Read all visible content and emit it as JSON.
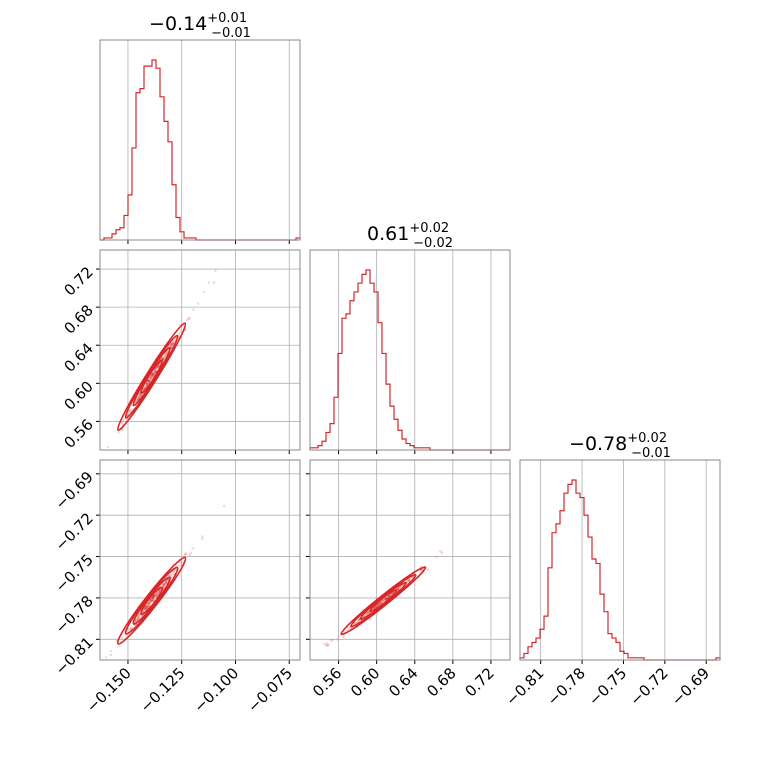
{
  "chart_data": {
    "type": "corner",
    "color": "#d62728",
    "parameters": [
      {
        "range": [
          -0.163,
          -0.07
        ],
        "ticks": [
          -0.15,
          -0.125,
          -0.1,
          -0.075
        ],
        "tick_labels": [
          "−0.150",
          "−0.125",
          "−0.100",
          "−0.075"
        ],
        "summary": {
          "median": "−0.14",
          "plus": "+0.01",
          "minus": "−0.01"
        },
        "hist": {
          "start": -0.163,
          "step": 0.00186,
          "counts": [
            0,
            1,
            1,
            3,
            5,
            6,
            12,
            22,
            45,
            72,
            74,
            85,
            85,
            88,
            84,
            70,
            58,
            48,
            27,
            11,
            4,
            1,
            1,
            1,
            0,
            0,
            0,
            0,
            0,
            0,
            0,
            0,
            0,
            0,
            0,
            0,
            0,
            0,
            0,
            0,
            0,
            0,
            0,
            0,
            0,
            0,
            0,
            0,
            0,
            1
          ]
        }
      },
      {
        "range": [
          0.53,
          0.74
        ],
        "ticks": [
          0.56,
          0.6,
          0.64,
          0.68,
          0.72
        ],
        "tick_labels": [
          "0.56",
          "0.60",
          "0.64",
          "0.68",
          "0.72"
        ],
        "summary": {
          "median": "0.61",
          "plus": "+0.02",
          "minus": "−0.02"
        },
        "hist": {
          "start": 0.53,
          "step": 0.0042,
          "counts": [
            1,
            1,
            2,
            4,
            8,
            12,
            24,
            44,
            60,
            62,
            68,
            72,
            76,
            80,
            82,
            76,
            72,
            58,
            44,
            30,
            20,
            14,
            9,
            5,
            3,
            2,
            1,
            1,
            1,
            1,
            0,
            0,
            0,
            0,
            0,
            0,
            0,
            0,
            0,
            0,
            0,
            0,
            0,
            0,
            0,
            0,
            0,
            0,
            0,
            0
          ]
        }
      },
      {
        "range": [
          -0.825,
          -0.68
        ],
        "ticks": [
          -0.81,
          -0.78,
          -0.75,
          -0.72,
          -0.69
        ],
        "tick_labels": [
          "−0.81",
          "−0.78",
          "−0.75",
          "−0.72",
          "−0.69"
        ],
        "summary": {
          "median": "−0.78",
          "plus": "+0.02",
          "minus": "−0.01"
        },
        "hist": {
          "start": -0.825,
          "step": 0.0029,
          "counts": [
            1,
            3,
            6,
            8,
            10,
            14,
            20,
            42,
            58,
            62,
            68,
            76,
            80,
            82,
            76,
            74,
            66,
            56,
            46,
            44,
            30,
            22,
            12,
            10,
            8,
            4,
            3,
            1,
            1,
            1,
            1,
            0,
            0,
            0,
            0,
            0,
            0,
            0,
            0,
            0,
            0,
            0,
            0,
            0,
            0,
            0,
            0,
            0,
            0,
            1
          ]
        }
      }
    ],
    "pairs": [
      {
        "x_param": 0,
        "y_param": 1,
        "slope": 3.6,
        "x_center": -0.139,
        "y_center": 0.607,
        "x_sd": 0.006,
        "scatter": 0.003
      },
      {
        "x_param": 0,
        "y_param": 2,
        "slope": 2.0,
        "x_center": -0.139,
        "y_center": -0.782,
        "x_sd": 0.006,
        "scatter": 0.0024
      },
      {
        "x_param": 1,
        "y_param": 2,
        "slope": 0.55,
        "x_center": 0.607,
        "y_center": -0.782,
        "x_sd": 0.017,
        "scatter": 0.0016
      }
    ]
  }
}
